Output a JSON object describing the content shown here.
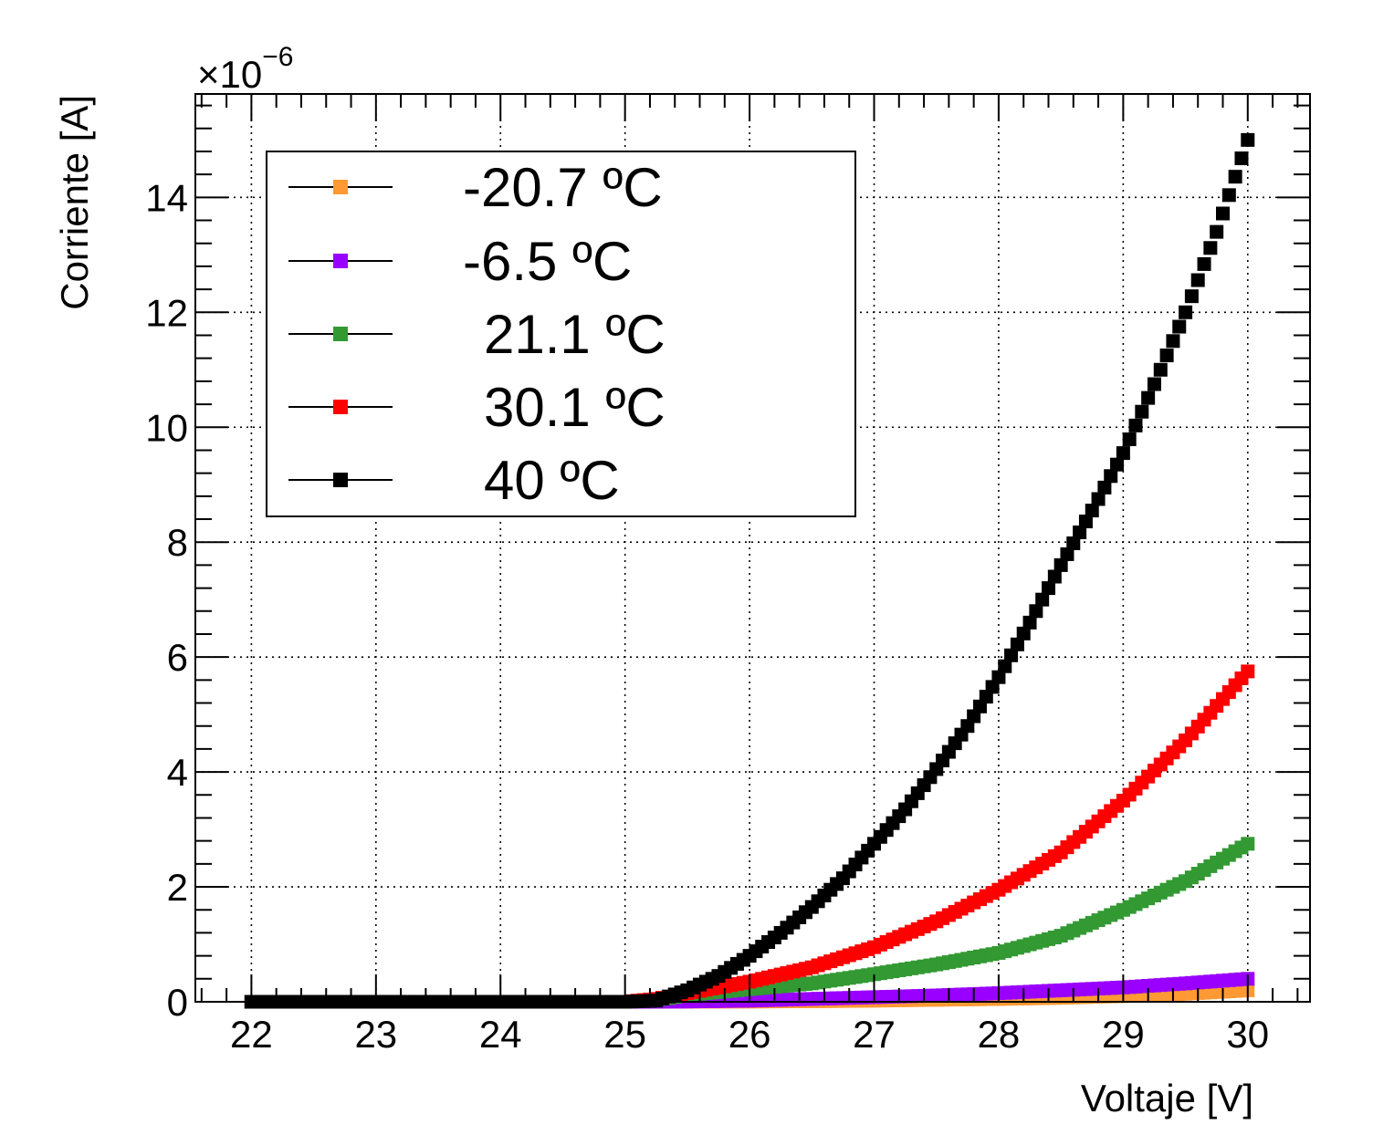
{
  "chart_data": {
    "type": "scatter",
    "title": "",
    "xlabel": "Voltaje [V]",
    "ylabel": "Corriente [A]",
    "y_multiplier_label": "×10",
    "y_multiplier_exponent": "−6",
    "xlim": [
      21.55,
      30.5
    ],
    "ylim": [
      0,
      15.8
    ],
    "x_ticks": [
      22,
      23,
      24,
      25,
      26,
      27,
      28,
      29,
      30
    ],
    "x_tick_labels": [
      "22",
      "23",
      "24",
      "25",
      "26",
      "27",
      "28",
      "29",
      "30"
    ],
    "y_ticks": [
      0,
      2,
      4,
      6,
      8,
      10,
      12,
      14
    ],
    "y_tick_labels": [
      "0",
      "2",
      "4",
      "6",
      "8",
      "10",
      "12",
      "14"
    ],
    "grid": true,
    "legend_position": "top-left",
    "series": [
      {
        "name": "-20.7 ºC",
        "color": "#ff9933",
        "x": [
          22.0,
          25.0,
          26.0,
          26.5,
          27.0,
          27.5,
          28.0,
          28.5,
          29.0,
          29.5,
          30.0
        ],
        "y": [
          0,
          0,
          0.005,
          0.01,
          0.02,
          0.035,
          0.05,
          0.07,
          0.1,
          0.14,
          0.2
        ]
      },
      {
        "name": "-6.5 ºC",
        "color": "#9900ff",
        "x": [
          22.0,
          25.0,
          25.5,
          26.0,
          26.5,
          27.0,
          27.5,
          28.0,
          28.5,
          29.0,
          29.5,
          30.0
        ],
        "y": [
          0,
          0,
          0.005,
          0.02,
          0.05,
          0.08,
          0.11,
          0.15,
          0.2,
          0.25,
          0.32,
          0.4
        ]
      },
      {
        "name": "21.1 ºC",
        "color": "#339933",
        "x": [
          22.0,
          25.0,
          25.25,
          25.5,
          26.0,
          26.5,
          27.0,
          27.5,
          28.0,
          28.5,
          29.0,
          29.5,
          30.0
        ],
        "y": [
          0,
          0,
          0.03,
          0.12,
          0.22,
          0.32,
          0.48,
          0.65,
          0.85,
          1.15,
          1.6,
          2.1,
          2.75
        ]
      },
      {
        "name": "30.1 ºC",
        "color": "#ff0000",
        "x": [
          22.0,
          25.0,
          25.25,
          25.5,
          26.0,
          26.5,
          27.0,
          27.5,
          28.0,
          28.5,
          29.0,
          29.5,
          30.0
        ],
        "y": [
          0,
          0,
          0.05,
          0.15,
          0.35,
          0.6,
          0.95,
          1.4,
          1.95,
          2.6,
          3.5,
          4.55,
          5.75
        ]
      },
      {
        "name": "40 ºC",
        "color": "#000000",
        "x": [
          22.0,
          25.0,
          25.25,
          25.5,
          25.75,
          26.0,
          26.25,
          26.5,
          26.75,
          27.0,
          27.25,
          27.5,
          27.75,
          28.0,
          28.25,
          28.5,
          28.75,
          29.0,
          29.25,
          29.5,
          29.75,
          30.0
        ],
        "y": [
          0,
          0,
          0.02,
          0.2,
          0.45,
          0.8,
          1.2,
          1.65,
          2.15,
          2.75,
          3.35,
          4.05,
          4.8,
          5.65,
          6.6,
          7.6,
          8.55,
          9.55,
          10.75,
          12.0,
          13.4,
          15.0
        ]
      }
    ]
  }
}
